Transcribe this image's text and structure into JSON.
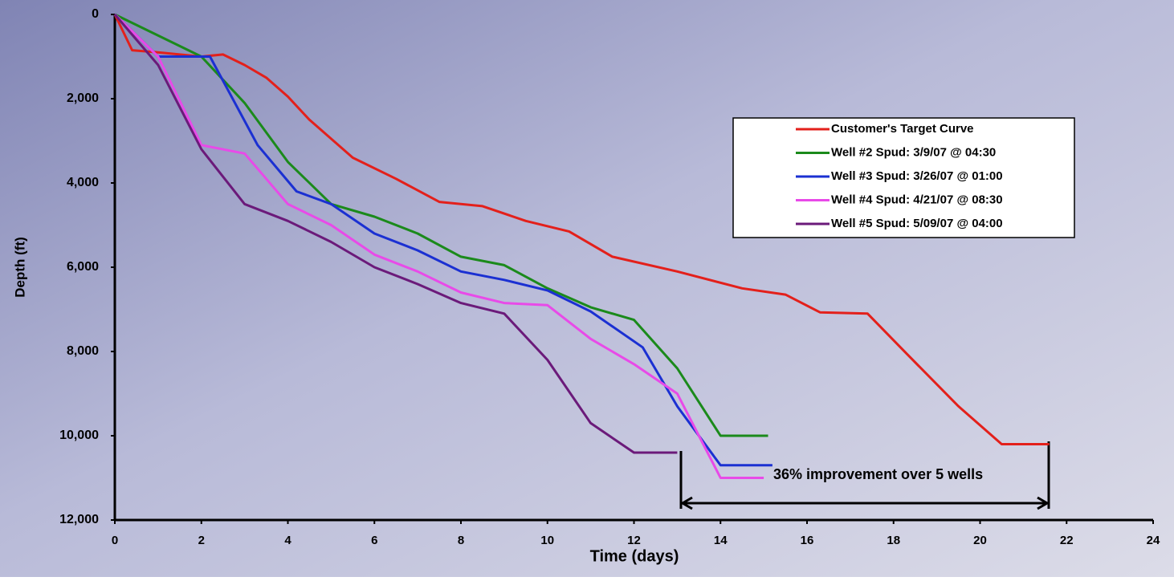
{
  "chart_data": {
    "type": "line",
    "xlabel": "Time (days)",
    "ylabel": "Depth (ft)",
    "xlim": [
      0,
      24
    ],
    "xticks": [
      0,
      2,
      4,
      6,
      8,
      10,
      12,
      14,
      16,
      18,
      20,
      22,
      24
    ],
    "ylim": [
      0,
      12000
    ],
    "y_inverted": true,
    "yticks": [
      0,
      {
        "value": 2000,
        "label": "2,000"
      },
      {
        "value": 4000,
        "label": "4,000"
      },
      {
        "value": 6000,
        "label": "6,000"
      },
      {
        "value": 8000,
        "label": "8,000"
      },
      {
        "value": 10000,
        "label": "10,000"
      },
      {
        "value": 12000,
        "label": "12,000"
      }
    ],
    "legend": "upper right",
    "annotation": "36% improvement over 5 wells",
    "series": [
      {
        "name": "Customer's Target Curve",
        "color": "#e3201b",
        "x": [
          0,
          0.4,
          1,
          2,
          2.5,
          3,
          3.5,
          4,
          4.5,
          5.5,
          6.5,
          7.5,
          8.5,
          9.5,
          10.5,
          11.5,
          13,
          14.5,
          15.5,
          16.3,
          17.4,
          18.3,
          19.5,
          20.5,
          21.6
        ],
        "values": [
          0,
          850,
          900,
          1000,
          950,
          1200,
          1500,
          1950,
          2500,
          3400,
          3900,
          4450,
          4550,
          4900,
          5150,
          5750,
          6100,
          6500,
          6650,
          7070,
          7100,
          8050,
          9300,
          10200,
          10200
        ]
      },
      {
        "name": "Well #2 Spud: 3/9/07 @ 04:30",
        "color": "#1b8a1b",
        "x": [
          0,
          2,
          3,
          4,
          5,
          6,
          7,
          8,
          9,
          10,
          11,
          12,
          13,
          14,
          15.1
        ],
        "values": [
          0,
          1000,
          2100,
          3500,
          4500,
          4800,
          5200,
          5750,
          5950,
          6500,
          6950,
          7250,
          8400,
          10000,
          10000
        ]
      },
      {
        "name": "Well #3 Spud: 3/26/07 @ 01:00",
        "color": "#1b30d2",
        "x": [
          0,
          1,
          2.2,
          3.3,
          4.2,
          5,
          6,
          7,
          8,
          9,
          10,
          11,
          12.2,
          13,
          14,
          15.2
        ],
        "values": [
          0,
          1000,
          1000,
          3100,
          4200,
          4500,
          5200,
          5600,
          6100,
          6300,
          6550,
          7050,
          7900,
          9300,
          10700,
          10700
        ]
      },
      {
        "name": "Well #4 Spud: 4/21/07 @ 08:30",
        "color": "#e84ae8",
        "x": [
          0,
          1,
          2,
          3,
          4,
          5,
          6,
          7,
          8,
          9,
          10,
          11,
          12,
          13,
          14,
          15
        ],
        "values": [
          0,
          1000,
          3100,
          3300,
          4500,
          5000,
          5700,
          6100,
          6600,
          6850,
          6900,
          7700,
          8300,
          9000,
          11000,
          11000
        ]
      },
      {
        "name": "Well #5 Spud: 5/09/07 @ 04:00",
        "color": "#6b1a7a",
        "x": [
          0,
          1,
          2,
          3,
          4,
          5,
          6,
          7,
          8,
          9,
          10,
          11,
          12,
          13
        ],
        "values": [
          0,
          1200,
          3200,
          4500,
          4900,
          5400,
          6000,
          6400,
          6850,
          7100,
          8200,
          9700,
          10400,
          10400
        ]
      }
    ]
  }
}
